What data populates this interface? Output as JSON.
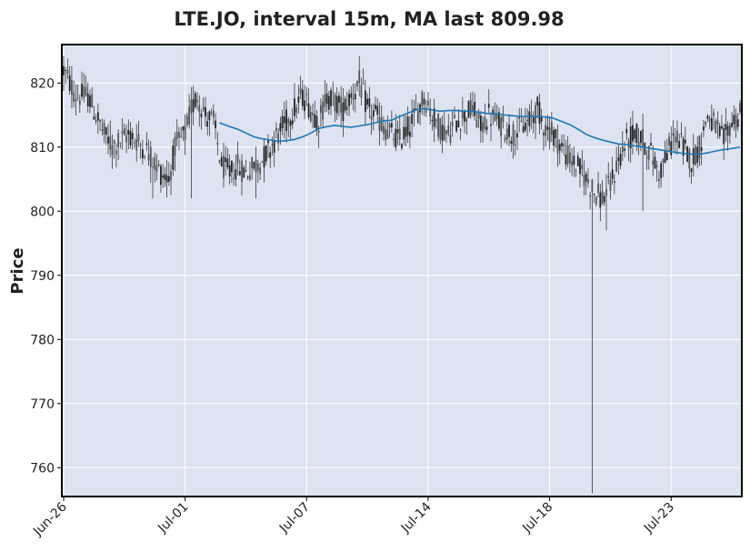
{
  "chart_data": {
    "type": "candlestick",
    "title": "LTE.JO, interval 15m, MA last 809.98",
    "xlabel": "",
    "ylabel": "Price",
    "ylim": [
      755.5,
      826
    ],
    "y_ticks": [
      760,
      770,
      780,
      790,
      800,
      810,
      820
    ],
    "x_ticks": [
      {
        "label": "Jun-26",
        "index": 0
      },
      {
        "label": "Jul-01",
        "index": 60
      },
      {
        "label": "Jul-07",
        "index": 120
      },
      {
        "label": "Jul-14",
        "index": 180
      },
      {
        "label": "Jul-18",
        "index": 240
      },
      {
        "label": "Jul-23",
        "index": 300
      }
    ],
    "n_bars": 335,
    "grid": true,
    "background": "#dde3f0",
    "grid_color": "#ffffff",
    "candle_color": "#222222",
    "ma_color": "#1f77b4",
    "price_anchors": [
      [
        0,
        822
      ],
      [
        3,
        820
      ],
      [
        6,
        818
      ],
      [
        12,
        818
      ],
      [
        16,
        815
      ],
      [
        20,
        812
      ],
      [
        24,
        810
      ],
      [
        28,
        811
      ],
      [
        32,
        812
      ],
      [
        36,
        811
      ],
      [
        40,
        810
      ],
      [
        44,
        808
      ],
      [
        48,
        806
      ],
      [
        52,
        805
      ],
      [
        55,
        810
      ],
      [
        60,
        812
      ],
      [
        63,
        816
      ],
      [
        66,
        818
      ],
      [
        70,
        815
      ],
      [
        74,
        814
      ],
      [
        78,
        807
      ],
      [
        82,
        806
      ],
      [
        86,
        807
      ],
      [
        90,
        806
      ],
      [
        94,
        807
      ],
      [
        98,
        808
      ],
      [
        102,
        810
      ],
      [
        106,
        812
      ],
      [
        110,
        814
      ],
      [
        114,
        816
      ],
      [
        118,
        818
      ],
      [
        122,
        816
      ],
      [
        126,
        814
      ],
      [
        130,
        818
      ],
      [
        134,
        817
      ],
      [
        138,
        816
      ],
      [
        142,
        818
      ],
      [
        146,
        820
      ],
      [
        150,
        816
      ],
      [
        154,
        815
      ],
      [
        158,
        813
      ],
      [
        162,
        812
      ],
      [
        166,
        811
      ],
      [
        170,
        813
      ],
      [
        174,
        815
      ],
      [
        178,
        818
      ],
      [
        182,
        815
      ],
      [
        186,
        813
      ],
      [
        190,
        812
      ],
      [
        194,
        814
      ],
      [
        198,
        815
      ],
      [
        202,
        816
      ],
      [
        206,
        813
      ],
      [
        210,
        815
      ],
      [
        214,
        814
      ],
      [
        218,
        813
      ],
      [
        222,
        812
      ],
      [
        226,
        813
      ],
      [
        230,
        814
      ],
      [
        234,
        816
      ],
      [
        238,
        813
      ],
      [
        242,
        812
      ],
      [
        246,
        810
      ],
      [
        250,
        808
      ],
      [
        254,
        807
      ],
      [
        258,
        805
      ],
      [
        262,
        803
      ],
      [
        266,
        802
      ],
      [
        270,
        804
      ],
      [
        274,
        808
      ],
      [
        278,
        811
      ],
      [
        282,
        812
      ],
      [
        286,
        811
      ],
      [
        290,
        809
      ],
      [
        294,
        806
      ],
      [
        298,
        809
      ],
      [
        302,
        812
      ],
      [
        306,
        810
      ],
      [
        310,
        808
      ],
      [
        314,
        810
      ],
      [
        318,
        815
      ],
      [
        322,
        813
      ],
      [
        326,
        811
      ],
      [
        330,
        814
      ],
      [
        334,
        815
      ]
    ],
    "spikes": [
      {
        "index": 261,
        "low": 756
      },
      {
        "index": 63,
        "low": 802
      },
      {
        "index": 44,
        "low": 802
      },
      {
        "index": 95,
        "low": 802
      },
      {
        "index": 268,
        "low": 797
      },
      {
        "index": 286,
        "low": 800
      }
    ],
    "ma_points": [
      [
        77,
        813.8
      ],
      [
        82,
        813.2
      ],
      [
        86,
        812.8
      ],
      [
        90,
        812.2
      ],
      [
        94,
        811.6
      ],
      [
        98,
        811.3
      ],
      [
        102,
        811.1
      ],
      [
        106,
        810.9
      ],
      [
        110,
        811.0
      ],
      [
        114,
        811.2
      ],
      [
        118,
        811.6
      ],
      [
        122,
        812.2
      ],
      [
        126,
        812.9
      ],
      [
        130,
        813.2
      ],
      [
        134,
        813.4
      ],
      [
        138,
        813.2
      ],
      [
        142,
        813.1
      ],
      [
        146,
        813.3
      ],
      [
        150,
        813.5
      ],
      [
        154,
        813.8
      ],
      [
        158,
        814.1
      ],
      [
        162,
        814.2
      ],
      [
        166,
        814.8
      ],
      [
        170,
        815.3
      ],
      [
        174,
        815.8
      ],
      [
        178,
        816.0
      ],
      [
        182,
        815.8
      ],
      [
        186,
        815.6
      ],
      [
        190,
        815.7
      ],
      [
        194,
        815.7
      ],
      [
        198,
        815.6
      ],
      [
        202,
        815.6
      ],
      [
        206,
        815.4
      ],
      [
        210,
        815.2
      ],
      [
        214,
        815.2
      ],
      [
        218,
        815.0
      ],
      [
        222,
        814.9
      ],
      [
        226,
        814.8
      ],
      [
        230,
        814.8
      ],
      [
        234,
        814.8
      ],
      [
        238,
        814.7
      ],
      [
        242,
        814.5
      ],
      [
        246,
        814.0
      ],
      [
        250,
        813.5
      ],
      [
        254,
        812.8
      ],
      [
        258,
        812.0
      ],
      [
        262,
        811.5
      ],
      [
        266,
        811.1
      ],
      [
        270,
        810.8
      ],
      [
        274,
        810.5
      ],
      [
        278,
        810.4
      ],
      [
        282,
        810.2
      ],
      [
        286,
        810.0
      ],
      [
        290,
        809.8
      ],
      [
        294,
        809.6
      ],
      [
        298,
        809.4
      ],
      [
        302,
        809.2
      ],
      [
        306,
        809.0
      ],
      [
        310,
        808.9
      ],
      [
        314,
        808.9
      ],
      [
        318,
        809.1
      ],
      [
        322,
        809.4
      ],
      [
        326,
        809.6
      ],
      [
        330,
        809.8
      ],
      [
        334,
        810.0
      ]
    ]
  }
}
